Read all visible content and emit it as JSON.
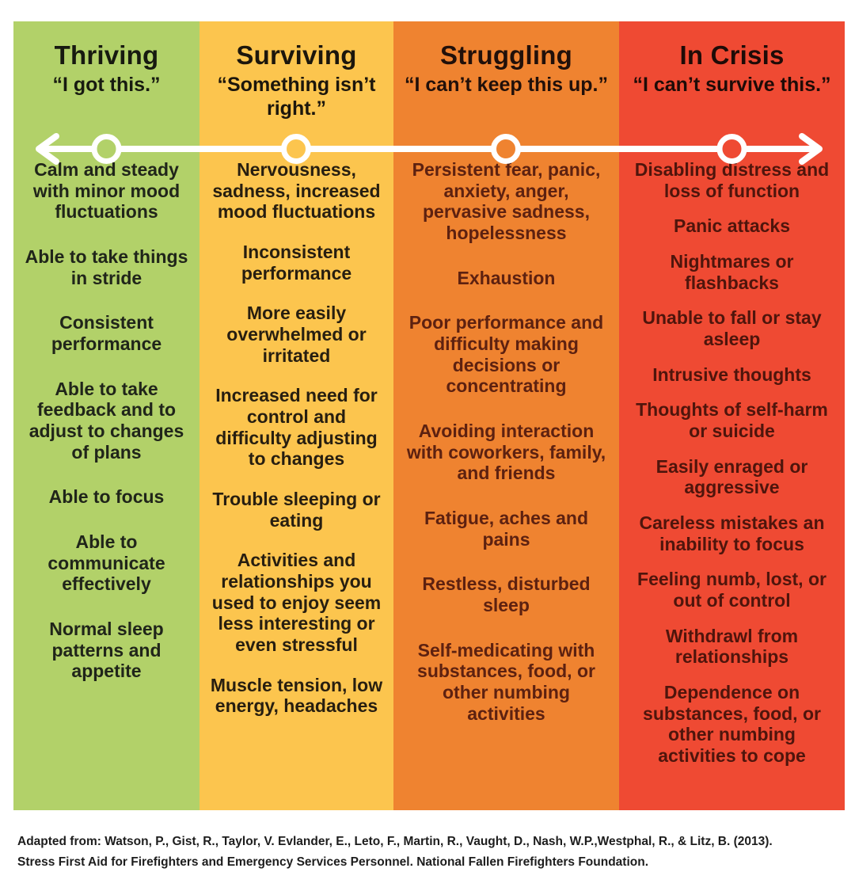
{
  "board": {
    "arrow_color": "#ffffff",
    "columns": [
      {
        "id": "thriving",
        "title": "Thriving",
        "quote": "“I got this.”",
        "color": "#b2d169",
        "header_color": "#171a10",
        "body_color": "#20251a",
        "items": [
          "Calm and steady with minor mood fluctuations",
          "Able to take things in stride",
          "Consistent performance",
          "Able to take feedback and to adjust to changes of plans",
          "Able to focus",
          "Able to communicate effectively",
          "Normal sleep patterns and appetite"
        ]
      },
      {
        "id": "surviving",
        "title": "Surviving",
        "quote": "“Something isn’t right.”",
        "color": "#fcc54e",
        "header_color": "#1c160c",
        "body_color": "#271e10",
        "items": [
          "Nervousness, sadness, increased mood fluctuations",
          "Inconsistent performance",
          "More easily overwhelmed or irritated",
          "Increased need for control and difficulty adjusting to changes",
          "Trouble sleeping or eating",
          "Activities and relationships you used to enjoy seem less interesting or even stressful",
          "Muscle tension, low energy, headaches"
        ]
      },
      {
        "id": "struggling",
        "title": "Struggling",
        "quote": "“I can’t keep this up.”",
        "color": "#ef8330",
        "header_color": "#21100a",
        "body_color": "#5d2110",
        "items": [
          "Persistent fear, panic, anxiety, anger, pervasive sadness, hopelessness",
          "Exhaustion",
          "Poor performance and difficulty making decisions or concentrating",
          "Avoiding interaction with coworkers, family, and friends",
          "Fatigue, aches and pains",
          "Restless, disturbed sleep",
          "Self-medicating with substances, food, or other numbing activities"
        ]
      },
      {
        "id": "in-crisis",
        "title": "In Crisis",
        "quote": "“I can’t survive this.”",
        "color": "#ef4a33",
        "header_color": "#1e0b07",
        "body_color": "#4f150c",
        "items": [
          "Disabling distress and loss of function",
          "Panic attacks",
          "Nightmares or flashbacks",
          "Unable to fall or stay asleep",
          "Intrusive thoughts",
          "Thoughts of self-harm or suicide",
          "Easily enraged or aggressive",
          "Careless mistakes an inability to focus",
          "Feeling numb, lost, or out of control",
          "Withdrawl from relationships",
          "Dependence on substances, food, or other numbing activities to cope"
        ]
      }
    ]
  },
  "footer": {
    "line1": "Adapted from: Watson, P., Gist, R., Taylor, V. Evlander, E., Leto, F., Martin, R., Vaught, D., Nash, W.P.,Westphal, R., & Litz, B. (2013).",
    "line2": "Stress First Aid for Firefighters and Emergency Services Personnel. National Fallen Firefighters Foundation."
  }
}
